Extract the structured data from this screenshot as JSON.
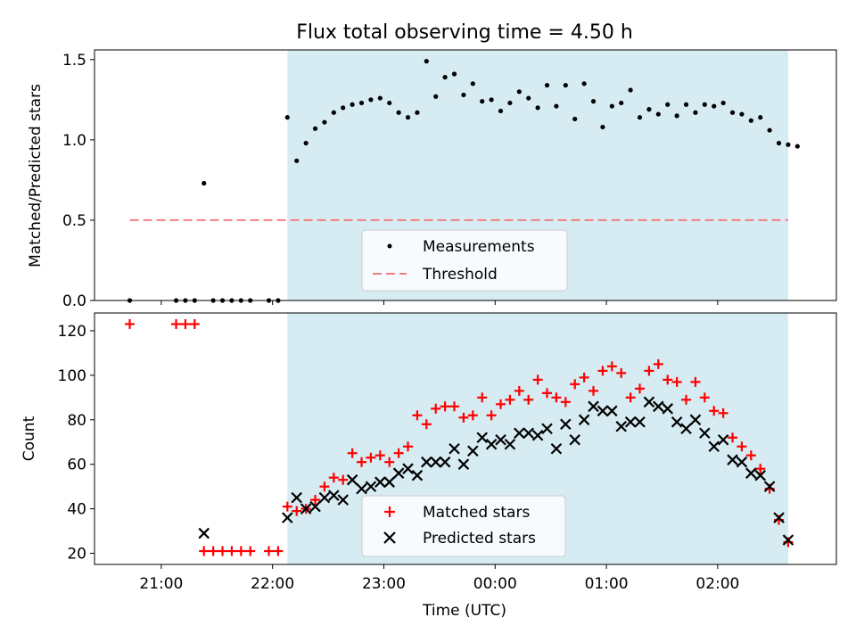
{
  "figure": {
    "title": "Flux total observing time = 4.50 h",
    "xlabel": "Time (UTC)"
  },
  "colors": {
    "shade": "#add8e6",
    "measurement": "#000000",
    "threshold": "#f08080",
    "matched": "#ff0000",
    "predicted": "#000000"
  },
  "chart_data": [
    {
      "type": "scatter",
      "ylabel": "Matched/Predicted stars",
      "xlim": [
        "20:24",
        "03:04"
      ],
      "ylim": [
        0,
        1.56
      ],
      "x_ticks": [
        "21:00",
        "22:00",
        "23:00",
        "00:00",
        "01:00",
        "02:00"
      ],
      "y_ticks": [
        "0.0",
        "0.5",
        "1.0",
        "1.5"
      ],
      "shaded_span": [
        "22:08",
        "02:38"
      ],
      "legend": {
        "placement": "lower-center",
        "entries": [
          "Measurements",
          "Threshold"
        ]
      },
      "threshold": {
        "name": "Threshold",
        "value": 0.5,
        "x": [
          "20:43",
          "02:38"
        ]
      },
      "series": [
        {
          "name": "Measurements",
          "marker": "dot",
          "points": [
            [
              "20:43",
              0.0
            ],
            [
              "21:08",
              0.0
            ],
            [
              "21:13",
              0.0
            ],
            [
              "21:18",
              0.0
            ],
            [
              "21:23",
              0.73
            ],
            [
              "21:28",
              0.0
            ],
            [
              "21:33",
              0.0
            ],
            [
              "21:38",
              0.0
            ],
            [
              "21:43",
              0.0
            ],
            [
              "21:48",
              0.0
            ],
            [
              "21:58",
              0.0
            ],
            [
              "22:03",
              0.0
            ],
            [
              "22:08",
              1.14
            ],
            [
              "22:13",
              0.87
            ],
            [
              "22:18",
              0.98
            ],
            [
              "22:23",
              1.07
            ],
            [
              "22:28",
              1.11
            ],
            [
              "22:33",
              1.17
            ],
            [
              "22:38",
              1.2
            ],
            [
              "22:43",
              1.22
            ],
            [
              "22:48",
              1.23
            ],
            [
              "22:53",
              1.25
            ],
            [
              "22:58",
              1.26
            ],
            [
              "23:03",
              1.23
            ],
            [
              "23:08",
              1.17
            ],
            [
              "23:13",
              1.14
            ],
            [
              "23:18",
              1.17
            ],
            [
              "23:23",
              1.49
            ],
            [
              "23:28",
              1.27
            ],
            [
              "23:33",
              1.39
            ],
            [
              "23:38",
              1.41
            ],
            [
              "23:43",
              1.28
            ],
            [
              "23:48",
              1.35
            ],
            [
              "23:53",
              1.24
            ],
            [
              "23:58",
              1.25
            ],
            [
              "00:03",
              1.18
            ],
            [
              "00:08",
              1.23
            ],
            [
              "00:13",
              1.3
            ],
            [
              "00:18",
              1.26
            ],
            [
              "00:23",
              1.2
            ],
            [
              "00:28",
              1.34
            ],
            [
              "00:33",
              1.21
            ],
            [
              "00:38",
              1.34
            ],
            [
              "00:43",
              1.13
            ],
            [
              "00:48",
              1.35
            ],
            [
              "00:53",
              1.24
            ],
            [
              "00:58",
              1.08
            ],
            [
              "01:03",
              1.21
            ],
            [
              "01:08",
              1.23
            ],
            [
              "01:13",
              1.31
            ],
            [
              "01:18",
              1.14
            ],
            [
              "01:23",
              1.19
            ],
            [
              "01:28",
              1.16
            ],
            [
              "01:33",
              1.22
            ],
            [
              "01:38",
              1.15
            ],
            [
              "01:43",
              1.22
            ],
            [
              "01:48",
              1.17
            ],
            [
              "01:53",
              1.22
            ],
            [
              "01:58",
              1.21
            ],
            [
              "02:03",
              1.23
            ],
            [
              "02:08",
              1.17
            ],
            [
              "02:13",
              1.16
            ],
            [
              "02:18",
              1.12
            ],
            [
              "02:23",
              1.14
            ],
            [
              "02:28",
              1.06
            ],
            [
              "02:33",
              0.98
            ],
            [
              "02:38",
              0.97
            ],
            [
              "02:43",
              0.96
            ]
          ]
        }
      ]
    },
    {
      "type": "scatter",
      "ylabel": "Count",
      "xlim": [
        "20:24",
        "03:04"
      ],
      "ylim": [
        15,
        128
      ],
      "x_ticks": [
        "21:00",
        "22:00",
        "23:00",
        "00:00",
        "01:00",
        "02:00"
      ],
      "y_ticks": [
        "20",
        "40",
        "60",
        "80",
        "100",
        "120"
      ],
      "shaded_span": [
        "22:08",
        "02:38"
      ],
      "legend": {
        "placement": "lower-center",
        "entries": [
          "Matched stars",
          "Predicted stars"
        ]
      },
      "series": [
        {
          "name": "Matched stars",
          "marker": "plus",
          "points": [
            [
              "20:43",
              123
            ],
            [
              "21:08",
              123
            ],
            [
              "21:13",
              123
            ],
            [
              "21:18",
              123
            ],
            [
              "21:23",
              21
            ],
            [
              "21:28",
              21
            ],
            [
              "21:33",
              21
            ],
            [
              "21:38",
              21
            ],
            [
              "21:43",
              21
            ],
            [
              "21:48",
              21
            ],
            [
              "21:58",
              21
            ],
            [
              "22:03",
              21
            ],
            [
              "22:08",
              41
            ],
            [
              "22:13",
              39
            ],
            [
              "22:18",
              40
            ],
            [
              "22:23",
              44
            ],
            [
              "22:28",
              50
            ],
            [
              "22:33",
              54
            ],
            [
              "22:38",
              53
            ],
            [
              "22:43",
              65
            ],
            [
              "22:48",
              61
            ],
            [
              "22:53",
              63
            ],
            [
              "22:58",
              64
            ],
            [
              "23:03",
              61
            ],
            [
              "23:08",
              65
            ],
            [
              "23:13",
              68
            ],
            [
              "23:18",
              82
            ],
            [
              "23:23",
              78
            ],
            [
              "23:28",
              85
            ],
            [
              "23:33",
              86
            ],
            [
              "23:38",
              86
            ],
            [
              "23:43",
              81
            ],
            [
              "23:48",
              82
            ],
            [
              "23:53",
              90
            ],
            [
              "23:58",
              82
            ],
            [
              "00:03",
              87
            ],
            [
              "00:08",
              89
            ],
            [
              "00:13",
              93
            ],
            [
              "00:18",
              89
            ],
            [
              "00:23",
              98
            ],
            [
              "00:28",
              92
            ],
            [
              "00:33",
              90
            ],
            [
              "00:38",
              88
            ],
            [
              "00:43",
              96
            ],
            [
              "00:48",
              99
            ],
            [
              "00:53",
              93
            ],
            [
              "00:58",
              102
            ],
            [
              "01:03",
              104
            ],
            [
              "01:08",
              101
            ],
            [
              "01:13",
              90
            ],
            [
              "01:18",
              94
            ],
            [
              "01:23",
              102
            ],
            [
              "01:28",
              105
            ],
            [
              "01:33",
              98
            ],
            [
              "01:38",
              97
            ],
            [
              "01:43",
              89
            ],
            [
              "01:48",
              97
            ],
            [
              "01:53",
              90
            ],
            [
              "01:58",
              84
            ],
            [
              "02:03",
              83
            ],
            [
              "02:08",
              72
            ],
            [
              "02:13",
              68
            ],
            [
              "02:18",
              64
            ],
            [
              "02:23",
              58
            ],
            [
              "02:28",
              49
            ],
            [
              "02:33",
              35
            ],
            [
              "02:38",
              25
            ]
          ]
        },
        {
          "name": "Predicted stars",
          "marker": "x",
          "points": [
            [
              "21:23",
              29
            ],
            [
              "22:08",
              36
            ],
            [
              "22:13",
              45
            ],
            [
              "22:18",
              40
            ],
            [
              "22:23",
              41
            ],
            [
              "22:28",
              45
            ],
            [
              "22:33",
              46
            ],
            [
              "22:38",
              44
            ],
            [
              "22:43",
              53
            ],
            [
              "22:48",
              49
            ],
            [
              "22:53",
              50
            ],
            [
              "22:58",
              52
            ],
            [
              "23:03",
              52
            ],
            [
              "23:08",
              56
            ],
            [
              "23:13",
              58
            ],
            [
              "23:18",
              55
            ],
            [
              "23:23",
              61
            ],
            [
              "23:28",
              61
            ],
            [
              "23:33",
              61
            ],
            [
              "23:38",
              67
            ],
            [
              "23:43",
              60
            ],
            [
              "23:48",
              66
            ],
            [
              "23:53",
              72
            ],
            [
              "23:58",
              69
            ],
            [
              "00:03",
              71
            ],
            [
              "00:08",
              69
            ],
            [
              "00:13",
              74
            ],
            [
              "00:18",
              74
            ],
            [
              "00:23",
              73
            ],
            [
              "00:28",
              76
            ],
            [
              "00:33",
              67
            ],
            [
              "00:38",
              78
            ],
            [
              "00:43",
              71
            ],
            [
              "00:48",
              80
            ],
            [
              "00:53",
              86
            ],
            [
              "00:58",
              84
            ],
            [
              "01:03",
              84
            ],
            [
              "01:08",
              77
            ],
            [
              "01:13",
              79
            ],
            [
              "01:18",
              79
            ],
            [
              "01:23",
              88
            ],
            [
              "01:28",
              86
            ],
            [
              "01:33",
              85
            ],
            [
              "01:38",
              79
            ],
            [
              "01:43",
              76
            ],
            [
              "01:48",
              80
            ],
            [
              "01:53",
              74
            ],
            [
              "01:58",
              68
            ],
            [
              "02:03",
              71
            ],
            [
              "02:08",
              62
            ],
            [
              "02:13",
              61
            ],
            [
              "02:18",
              56
            ],
            [
              "02:23",
              55
            ],
            [
              "02:28",
              50
            ],
            [
              "02:33",
              36
            ],
            [
              "02:38",
              26
            ]
          ]
        }
      ]
    }
  ]
}
